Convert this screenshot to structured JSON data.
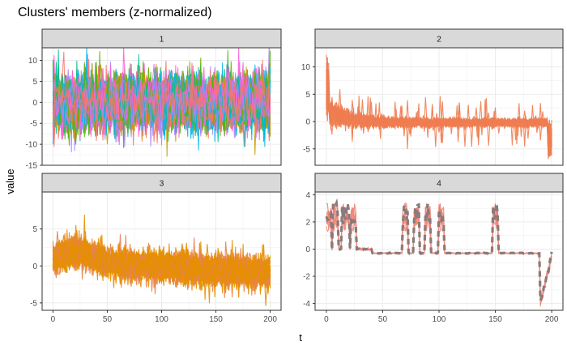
{
  "chart_data": {
    "type": "line",
    "title": "Clusters' members (z-normalized)",
    "xlabel": "t",
    "ylabel": "value",
    "grid": true,
    "legend": "none",
    "x_ticks": [
      0,
      50,
      100,
      150,
      200
    ],
    "xlim": [
      0,
      200
    ],
    "panels": [
      {
        "label": "1",
        "ylim": [
          -15,
          13
        ],
        "y_ticks": [
          -15,
          -10,
          -5,
          0,
          5,
          10
        ],
        "series_colors": [
          "#C49A00",
          "#53B400",
          "#00C094",
          "#00B6EB",
          "#A58AFF",
          "#FB61D7",
          "#F8766D"
        ],
        "n_series": 70,
        "noise_amp": 3.0,
        "spike_amp": 9.0,
        "trend": "flat"
      },
      {
        "label": "2",
        "ylim": [
          -8,
          13.5
        ],
        "y_ticks": [
          -5,
          0,
          5,
          10
        ],
        "series_colors": [
          "#F07B52",
          "#EE8050"
        ],
        "n_series": 35,
        "noise_amp": 0.6,
        "spike_amp": 4.5,
        "trend": "decay"
      },
      {
        "label": "3",
        "ylim": [
          -6,
          10
        ],
        "y_ticks": [
          -5,
          0,
          5
        ],
        "series_colors": [
          "#E88350",
          "#E88E00",
          "#E39000"
        ],
        "n_series": 60,
        "noise_amp": 0.9,
        "spike_amp": 3.5,
        "trend": "hump"
      },
      {
        "label": "4",
        "ylim": [
          -4.5,
          4.2
        ],
        "y_ticks": [
          -4,
          -2,
          0,
          2,
          4
        ],
        "series_colors": [
          "#EE7D6E",
          "#F28A7A"
        ],
        "center_color": "#8C7A7A",
        "n_series": 6,
        "trend": "steps"
      }
    ]
  }
}
